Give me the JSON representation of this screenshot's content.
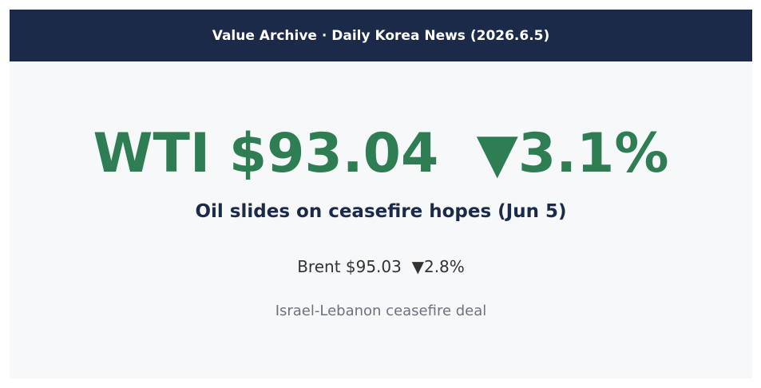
{
  "header": {
    "title": "Value Archive · Daily Korea News (2026.6.5)"
  },
  "headline": "WTI $93.04  ▼3.1%",
  "subtitle": "Oil slides on ceasefire hopes (Jun 5)",
  "secondary": "Brent $95.03  ▼2.8%",
  "note": "Israel-Lebanon ceasefire deal"
}
